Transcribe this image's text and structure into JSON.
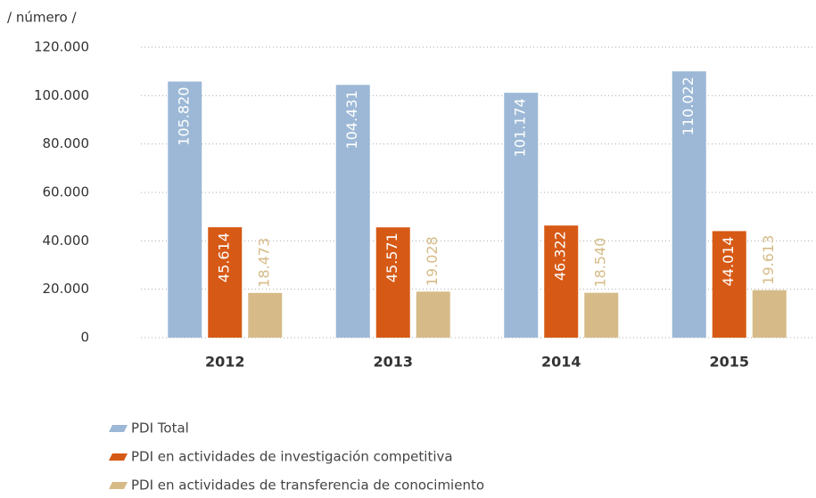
{
  "chart_data": {
    "type": "bar",
    "y_axis_label": "/ número /",
    "categories": [
      "2012",
      "2013",
      "2014",
      "2015"
    ],
    "series": [
      {
        "name": "PDI Total",
        "color": "#9cb8d6",
        "values": [
          105820,
          104431,
          101174,
          110022
        ],
        "value_labels": [
          "105.820",
          "104.431",
          "101.174",
          "110.022"
        ]
      },
      {
        "name": "PDI en actividades de investigación competitiva",
        "color": "#d65a16",
        "values": [
          45614,
          45571,
          46322,
          44014
        ],
        "value_labels": [
          "45.614",
          "45.571",
          "46.322",
          "44.014"
        ]
      },
      {
        "name": "PDI en actividades de transferencia de conocimiento",
        "color": "#d6bb88",
        "values": [
          18473,
          19028,
          18540,
          19613
        ],
        "value_labels": [
          "18.473",
          "19.028",
          "18.540",
          "19.613"
        ]
      }
    ],
    "ylim": [
      0,
      120000
    ],
    "yticks": [
      0,
      {
        "value": 20000,
        "label": "20.000"
      },
      {
        "value": 40000,
        "label": "40.000"
      },
      {
        "value": 60000,
        "label": "60.000"
      },
      {
        "value": 80000,
        "label": "80.000"
      },
      {
        "value": 100000,
        "label": "100.000"
      },
      {
        "value": 120000,
        "label": "120.000"
      }
    ],
    "grid": true,
    "legend": "bottom"
  }
}
